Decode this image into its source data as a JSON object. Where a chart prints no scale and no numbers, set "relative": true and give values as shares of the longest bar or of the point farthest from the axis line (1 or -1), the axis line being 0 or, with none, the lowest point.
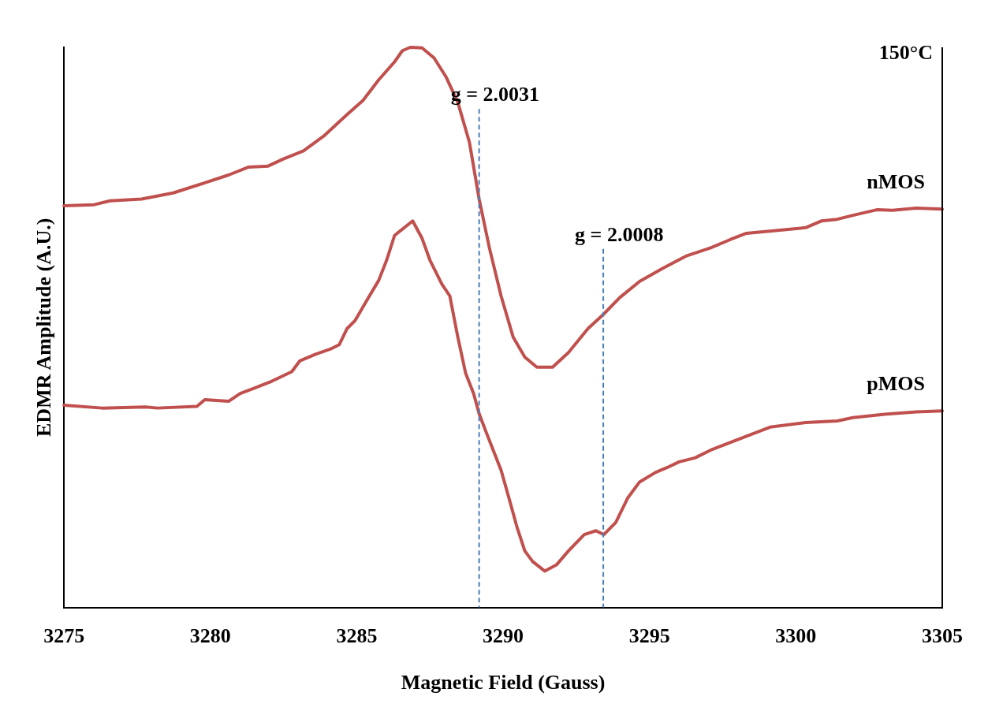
{
  "chart_data": {
    "type": "line",
    "xlabel": "Magnetic Field (Gauss)",
    "ylabel": "EDMR Amplitude (A.U.)",
    "relative": true,
    "xlim": [
      3275,
      3305
    ],
    "xticks": [
      3275,
      3280,
      3285,
      3290,
      3295,
      3300,
      3305
    ],
    "grid": false,
    "legend": false,
    "marker": "none",
    "line_style": "solid",
    "annotations": [
      "150°C",
      "g = 2.0031",
      "g = 2.0008"
    ],
    "ref_lines": [
      {
        "axis": "x",
        "value": 3289.18,
        "color": "#4a7ebb",
        "line_style": "dashed"
      },
      {
        "axis": "x",
        "value": 3293.42,
        "color": "#4a7ebb",
        "line_style": "dashed"
      }
    ],
    "series": [
      {
        "name": "nMOS",
        "color": "#c0504d",
        "x": [
          3275,
          3276.03,
          3276.57,
          3277.65,
          3278.73,
          3279.81,
          3280.62,
          3281.29,
          3281.97,
          3282.51,
          3283.18,
          3283.86,
          3284.67,
          3285.21,
          3285.75,
          3286.29,
          3286.56,
          3286.83,
          3287.23,
          3287.64,
          3288.04,
          3288.45,
          3288.85,
          3289.18,
          3289.53,
          3289.93,
          3290.34,
          3290.74,
          3291.15,
          3291.69,
          3292.23,
          3292.9,
          3293.44,
          3293.98,
          3294.66,
          3295.47,
          3296.28,
          3297.09,
          3297.77,
          3298.31,
          3299.52,
          3300.33,
          3300.87,
          3301.41,
          3301.95,
          3302.76,
          3303.3,
          3304.11,
          3305
        ],
        "values": [
          0.717,
          0.719,
          0.726,
          0.729,
          0.74,
          0.758,
          0.772,
          0.786,
          0.788,
          0.801,
          0.815,
          0.841,
          0.88,
          0.905,
          0.942,
          0.974,
          0.994,
          1,
          0.999,
          0.981,
          0.948,
          0.902,
          0.83,
          0.729,
          0.642,
          0.556,
          0.483,
          0.447,
          0.429,
          0.429,
          0.455,
          0.498,
          0.524,
          0.553,
          0.582,
          0.606,
          0.628,
          0.642,
          0.657,
          0.668,
          0.674,
          0.678,
          0.69,
          0.693,
          0.7,
          0.71,
          0.709,
          0.713,
          0.711
        ]
      },
      {
        "name": "pMOS",
        "color": "#c0504d",
        "x": [
          3275,
          3276.3,
          3277.78,
          3278.19,
          3279.54,
          3279.81,
          3280.62,
          3281.02,
          3281.43,
          3282.1,
          3282.78,
          3283.05,
          3283.59,
          3284.13,
          3284.4,
          3284.67,
          3284.94,
          3285.34,
          3285.75,
          3286.02,
          3286.29,
          3286.69,
          3286.91,
          3287.23,
          3287.5,
          3287.91,
          3288.18,
          3288.45,
          3288.72,
          3288.99,
          3289.18,
          3289.39,
          3289.66,
          3289.93,
          3290.2,
          3290.47,
          3290.74,
          3291.01,
          3291.42,
          3291.82,
          3292.23,
          3292.77,
          3293.17,
          3293.44,
          3293.85,
          3294.25,
          3294.66,
          3295.2,
          3295.61,
          3296.01,
          3296.55,
          3297.09,
          3298.17,
          3299.12,
          3300.33,
          3301.41,
          3301.95,
          3303.03,
          3304.11,
          3305
        ],
        "values": [
          0.361,
          0.356,
          0.358,
          0.356,
          0.359,
          0.371,
          0.368,
          0.382,
          0.39,
          0.404,
          0.421,
          0.44,
          0.452,
          0.462,
          0.469,
          0.498,
          0.512,
          0.548,
          0.584,
          0.62,
          0.664,
          0.681,
          0.69,
          0.659,
          0.62,
          0.577,
          0.556,
          0.483,
          0.418,
          0.382,
          0.346,
          0.317,
          0.281,
          0.245,
          0.195,
          0.144,
          0.101,
          0.082,
          0.065,
          0.076,
          0.101,
          0.13,
          0.137,
          0.13,
          0.152,
          0.195,
          0.224,
          0.241,
          0.25,
          0.26,
          0.267,
          0.281,
          0.303,
          0.322,
          0.33,
          0.333,
          0.339,
          0.345,
          0.349,
          0.351
        ]
      }
    ]
  }
}
